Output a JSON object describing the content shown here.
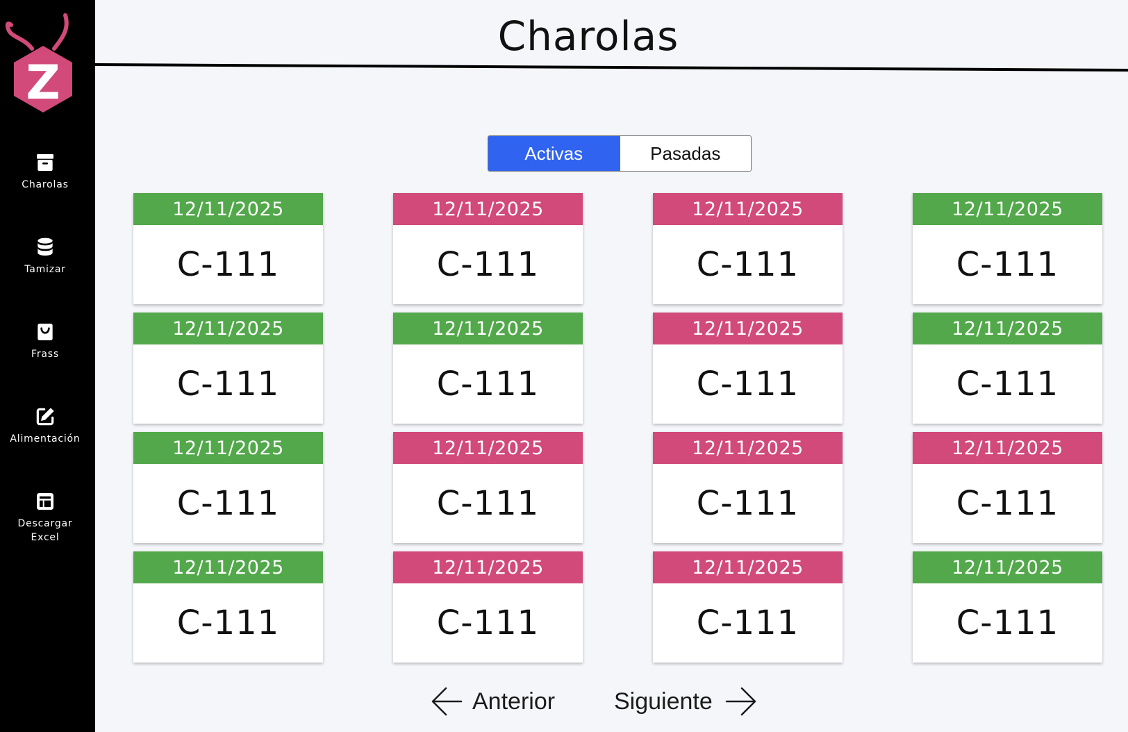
{
  "page": {
    "title": "Charolas"
  },
  "colors": {
    "active_card": "#52a84a",
    "inactive_card": "#d14a7a",
    "toggle_active": "#2f63f0",
    "logo": "#d14a7a"
  },
  "sidebar": {
    "logo": {
      "letter": "Z",
      "icon": "bug-hexagon-logo"
    },
    "items": [
      {
        "label": "Charolas",
        "icon": "archive-box-icon"
      },
      {
        "label": "Tamizar",
        "icon": "database-icon"
      },
      {
        "label": "Frass",
        "icon": "bag-icon"
      },
      {
        "label": "Alimentación",
        "icon": "edit-icon"
      },
      {
        "label_line1": "Descargar",
        "label_line2": "Excel",
        "icon": "table-icon"
      }
    ]
  },
  "tabs": {
    "active": "Activas",
    "other": "Pasadas"
  },
  "cards": [
    {
      "date": "12/11/2025",
      "code": "C-111",
      "status": "green"
    },
    {
      "date": "12/11/2025",
      "code": "C-111",
      "status": "pink"
    },
    {
      "date": "12/11/2025",
      "code": "C-111",
      "status": "pink"
    },
    {
      "date": "12/11/2025",
      "code": "C-111",
      "status": "green"
    },
    {
      "date": "12/11/2025",
      "code": "C-111",
      "status": "green"
    },
    {
      "date": "12/11/2025",
      "code": "C-111",
      "status": "green"
    },
    {
      "date": "12/11/2025",
      "code": "C-111",
      "status": "pink"
    },
    {
      "date": "12/11/2025",
      "code": "C-111",
      "status": "green"
    },
    {
      "date": "12/11/2025",
      "code": "C-111",
      "status": "green"
    },
    {
      "date": "12/11/2025",
      "code": "C-111",
      "status": "pink"
    },
    {
      "date": "12/11/2025",
      "code": "C-111",
      "status": "pink"
    },
    {
      "date": "12/11/2025",
      "code": "C-111",
      "status": "pink"
    },
    {
      "date": "12/11/2025",
      "code": "C-111",
      "status": "green"
    },
    {
      "date": "12/11/2025",
      "code": "C-111",
      "status": "pink"
    },
    {
      "date": "12/11/2025",
      "code": "C-111",
      "status": "pink"
    },
    {
      "date": "12/11/2025",
      "code": "C-111",
      "status": "green"
    }
  ],
  "pagination": {
    "prev": "Anterior",
    "next": "Siguiente"
  }
}
